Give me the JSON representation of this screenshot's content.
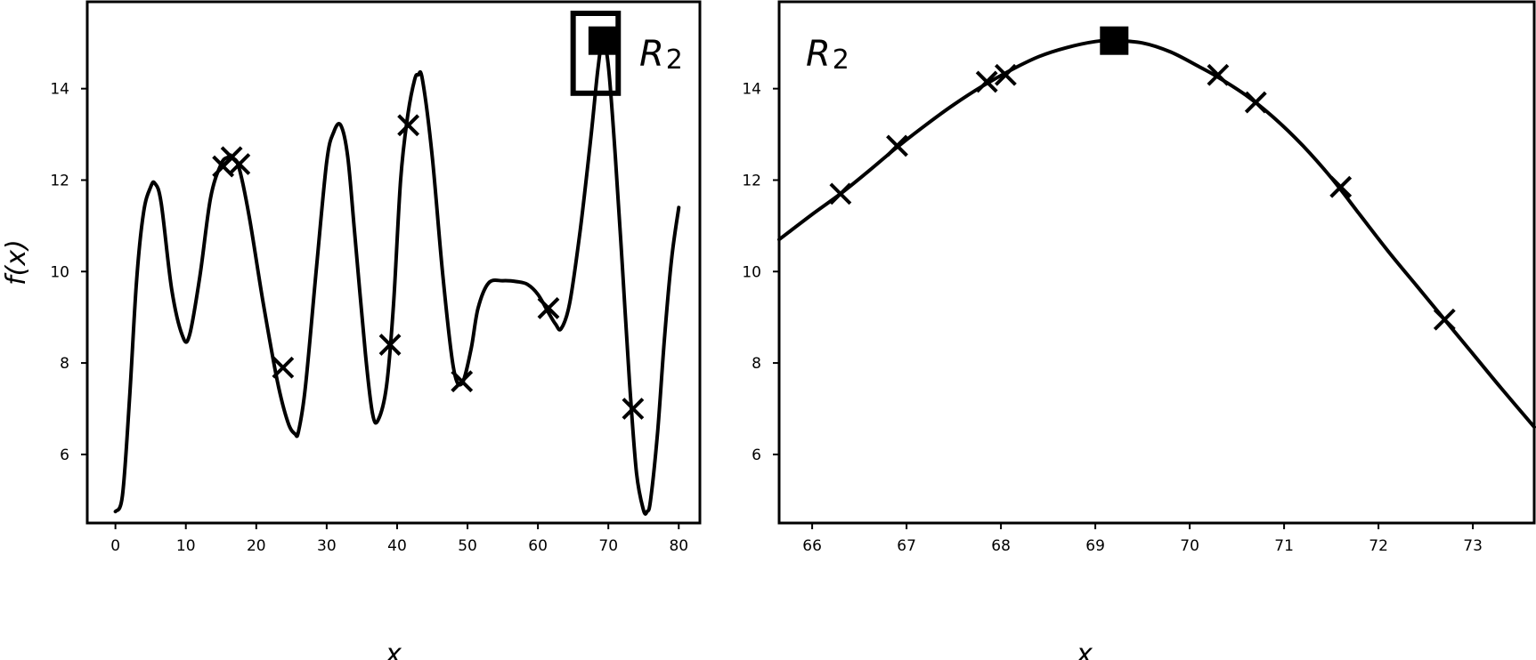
{
  "chart_data": [
    {
      "type": "line",
      "xlabel": "x",
      "ylabel": "f(x)",
      "xlim": [
        -4,
        83
      ],
      "ylim": [
        4.5,
        15.9
      ],
      "xticks": [
        0,
        10,
        20,
        30,
        40,
        50,
        60,
        70,
        80
      ],
      "yticks": [
        6,
        8,
        10,
        12,
        14
      ],
      "curve": {
        "x": [
          0,
          1,
          2,
          3,
          4,
          5,
          5.6,
          6.5,
          8,
          9.5,
          10.5,
          12,
          13.5,
          15,
          16,
          16.5,
          17.5,
          19,
          21,
          23,
          24.5,
          25.5,
          26,
          27,
          28.5,
          30,
          31,
          32,
          33,
          34,
          35.5,
          36.5,
          37.3,
          38.5,
          39.5,
          40.5,
          41.5,
          42.5,
          43,
          43.6,
          45,
          46.5,
          48,
          49.2,
          50.5,
          51.5,
          53,
          55,
          57,
          58.5,
          60,
          61.5,
          62.5,
          63.3,
          64.5,
          66,
          67.5,
          68.5,
          69.2,
          70,
          71,
          72,
          73,
          74,
          75,
          75.5,
          76,
          77,
          78,
          79,
          80
        ],
        "y": [
          4.75,
          5.1,
          7.2,
          9.8,
          11.3,
          11.85,
          11.93,
          11.5,
          9.6,
          8.6,
          8.6,
          9.9,
          11.6,
          12.35,
          12.5,
          12.48,
          12.3,
          11.2,
          9.3,
          7.6,
          6.7,
          6.45,
          6.5,
          7.5,
          10.0,
          12.4,
          13.05,
          13.2,
          12.5,
          10.8,
          8.2,
          6.9,
          6.75,
          7.5,
          9.3,
          12.0,
          13.4,
          14.2,
          14.3,
          14.2,
          12.5,
          9.9,
          7.9,
          7.55,
          8.3,
          9.2,
          9.75,
          9.8,
          9.78,
          9.72,
          9.5,
          9.1,
          8.85,
          8.75,
          9.3,
          10.9,
          12.9,
          14.4,
          15.05,
          14.5,
          12.5,
          10.1,
          7.6,
          5.6,
          4.78,
          4.75,
          5.0,
          6.5,
          8.6,
          10.3,
          11.4
        ]
      },
      "samples": {
        "x": [
          15.3,
          16.5,
          17.6,
          23.8,
          39,
          41.6,
          49.2,
          61.5,
          73.5
        ],
        "y": [
          12.3,
          12.5,
          12.35,
          7.9,
          8.4,
          13.2,
          7.6,
          9.2,
          7.0
        ]
      },
      "best": {
        "x": 69.2,
        "y": 15.05
      },
      "region": {
        "label": "R",
        "sub": "2",
        "x": [
          65,
          71.4
        ],
        "y": [
          13.9,
          16.4
        ]
      }
    },
    {
      "type": "line",
      "xlabel": "x",
      "ylabel": "",
      "xlim": [
        65.65,
        73.65
      ],
      "ylim": [
        4.5,
        15.9
      ],
      "xticks": [
        66,
        67,
        68,
        69,
        70,
        71,
        72,
        73
      ],
      "yticks": [
        6,
        8,
        10,
        12,
        14
      ],
      "curve": {
        "x": [
          65.65,
          66,
          66.3,
          66.6,
          66.9,
          67.2,
          67.5,
          67.8,
          68.1,
          68.4,
          68.7,
          69.0,
          69.2,
          69.5,
          69.8,
          70.1,
          70.3,
          70.6,
          70.9,
          71.2,
          71.5,
          71.8,
          72.1,
          72.4,
          72.7,
          73.0,
          73.3,
          73.65
        ],
        "y": [
          10.7,
          11.25,
          11.7,
          12.2,
          12.72,
          13.2,
          13.65,
          14.05,
          14.4,
          14.7,
          14.9,
          15.03,
          15.05,
          15.0,
          14.8,
          14.48,
          14.25,
          13.85,
          13.35,
          12.75,
          12.05,
          11.25,
          10.45,
          9.7,
          8.95,
          8.2,
          7.45,
          6.6
        ]
      },
      "samples": {
        "x": [
          66.3,
          66.9,
          67.85,
          68.05,
          70.3,
          70.7,
          71.6,
          72.7
        ],
        "y": [
          11.7,
          12.75,
          14.15,
          14.3,
          14.3,
          13.7,
          11.85,
          8.95
        ]
      },
      "best": {
        "x": 69.2,
        "y": 15.05
      },
      "region_label": {
        "label": "R",
        "sub": "2"
      }
    }
  ]
}
